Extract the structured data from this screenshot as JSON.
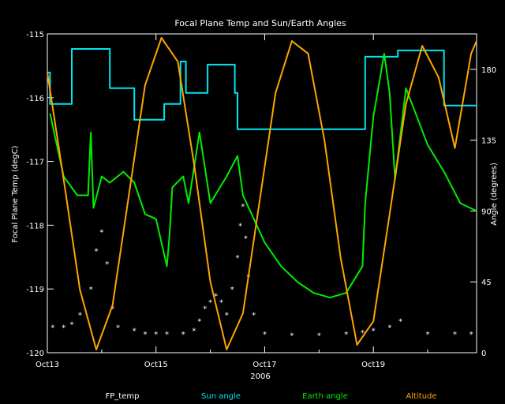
{
  "chart_data": {
    "type": "line",
    "title": "Focal Plane Temp and Sun/Earth Angles",
    "xlabel": "2006",
    "ylabel_left": "Focal Plane Temp (degC)",
    "ylabel_right": "Angle (degrees)",
    "x_tick_labels": [
      "Oct13",
      "Oct15",
      "Oct17",
      "Oct19"
    ],
    "x_tick_days": [
      13,
      15,
      17,
      19
    ],
    "xlim": [
      13,
      20.9
    ],
    "ylim_left": [
      -120,
      -115
    ],
    "y_left_ticks": [
      "-115",
      "-116",
      "-117",
      "-118",
      "-119",
      "-120"
    ],
    "ylim_right": [
      0,
      202.5
    ],
    "y_right_ticks": [
      "180",
      "135",
      "90",
      "45",
      "0"
    ],
    "grid": false,
    "legend_placement": "bottom",
    "colors": {
      "FP_temp": "#ffffff",
      "Sun angle": "#00e5ee",
      "Earth angle": "#00ee00",
      "Altitude": "#ffa500",
      "axes": "#ffffff"
    },
    "series": [
      {
        "name": "FP_temp",
        "style": "markers",
        "x": [
          13.1,
          13.3,
          13.45,
          13.6,
          13.8,
          13.9,
          14.0,
          14.1,
          14.2,
          14.3,
          14.6,
          14.8,
          15.0,
          15.2,
          15.5,
          15.7,
          15.8,
          15.9,
          16.0,
          16.1,
          16.2,
          16.3,
          16.4,
          16.5,
          16.55,
          16.6,
          16.65,
          16.7,
          16.8,
          17.0,
          17.5,
          18.0,
          18.5,
          18.8,
          19.0,
          19.3,
          19.5,
          20.0,
          20.5,
          20.8
        ],
        "y": [
          -119.6,
          -119.6,
          -119.55,
          -119.4,
          -119.0,
          -118.4,
          -118.1,
          -118.6,
          -119.3,
          -119.6,
          -119.65,
          -119.7,
          -119.7,
          -119.7,
          -119.7,
          -119.65,
          -119.5,
          -119.3,
          -119.2,
          -119.1,
          -119.2,
          -119.4,
          -119.0,
          -118.5,
          -118.0,
          -117.7,
          -118.2,
          -118.8,
          -119.4,
          -119.7,
          -119.72,
          -119.72,
          -119.7,
          -119.68,
          -119.65,
          -119.6,
          -119.5,
          -119.7,
          -119.7,
          -119.7
        ]
      },
      {
        "name": "Sun angle",
        "style": "line",
        "x": [
          13.0,
          13.05,
          13.05,
          13.45,
          13.45,
          14.15,
          14.15,
          14.6,
          14.6,
          15.15,
          15.15,
          15.45,
          15.45,
          15.55,
          15.55,
          15.95,
          15.95,
          16.45,
          16.45,
          16.5,
          16.5,
          18.85,
          18.85,
          19.45,
          19.45,
          20.3,
          20.3,
          20.9
        ],
        "y": [
          178,
          178,
          158,
          158,
          193,
          193,
          168,
          168,
          148,
          148,
          158,
          158,
          185,
          185,
          165,
          165,
          183,
          183,
          165,
          165,
          142,
          142,
          188,
          188,
          192,
          192,
          157,
          157
        ]
      },
      {
        "name": "Earth angle",
        "style": "line",
        "x": [
          13.05,
          13.3,
          13.55,
          13.75,
          13.8,
          13.85,
          14.0,
          14.15,
          14.4,
          14.6,
          14.8,
          15.0,
          15.2,
          15.25,
          15.3,
          15.5,
          15.6,
          15.8,
          16.0,
          16.3,
          16.5,
          16.6,
          16.8,
          17.0,
          17.3,
          17.6,
          17.9,
          18.2,
          18.5,
          18.8,
          18.85,
          19.0,
          19.1,
          19.2,
          19.3,
          19.4,
          19.6,
          19.8,
          20.0,
          20.3,
          20.6,
          20.9
        ],
        "y": [
          152,
          112,
          100,
          100,
          140,
          92,
          112,
          108,
          115,
          108,
          88,
          85,
          55,
          75,
          105,
          112,
          95,
          140,
          95,
          112,
          125,
          100,
          85,
          70,
          55,
          45,
          38,
          35,
          38,
          55,
          95,
          150,
          170,
          190,
          165,
          110,
          168,
          150,
          132,
          115,
          95,
          90
        ]
      },
      {
        "name": "Altitude",
        "style": "line",
        "x": [
          13.0,
          13.3,
          13.6,
          13.9,
          14.2,
          14.5,
          14.8,
          15.1,
          15.4,
          15.7,
          16.0,
          16.3,
          16.6,
          16.9,
          17.2,
          17.5,
          17.8,
          18.1,
          18.4,
          18.7,
          19.0,
          19.3,
          19.6,
          19.9,
          20.2,
          20.5,
          20.8,
          20.9
        ],
        "y": [
          178,
          110,
          40,
          2,
          30,
          100,
          170,
          200,
          185,
          120,
          45,
          2,
          25,
          95,
          165,
          198,
          190,
          135,
          60,
          5,
          20,
          88,
          158,
          195,
          175,
          130,
          190,
          198
        ]
      }
    ],
    "legend": [
      "FP_temp",
      "Sun angle",
      "Earth angle",
      "Altitude"
    ]
  }
}
